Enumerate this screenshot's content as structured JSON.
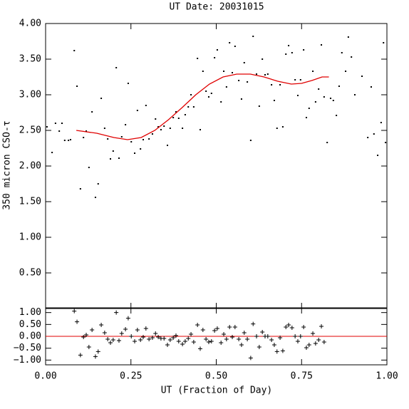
{
  "chart_data": [
    {
      "type": "scatter",
      "title": "UT Date: 20031015",
      "y_label": "350 micron CSO-τ",
      "xlim": [
        0,
        1
      ],
      "ylim": [
        0,
        4
      ],
      "yticks": [
        {
          "value": 0.5,
          "label": "0.50"
        },
        {
          "value": 1,
          "label": "1.00"
        },
        {
          "value": 1.5,
          "label": "1.50"
        },
        {
          "value": 2,
          "label": "2.00"
        },
        {
          "value": 2.5,
          "label": "2.50"
        },
        {
          "value": 3,
          "label": "3.00"
        },
        {
          "value": 3.5,
          "label": "3.50"
        },
        {
          "value": 4,
          "label": "4.00"
        }
      ],
      "series": [
        {
          "type": "scatter",
          "color": "#000000",
          "x": [
            0.004,
            0.019,
            0.029,
            0.04,
            0.048,
            0.056,
            0.067,
            0.073,
            0.084,
            0.092,
            0.102,
            0.111,
            0.119,
            0.127,
            0.136,
            0.146,
            0.154,
            0.163,
            0.173,
            0.182,
            0.19,
            0.198,
            0.207,
            0.215,
            0.223,
            0.234,
            0.242,
            0.251,
            0.261,
            0.269,
            0.278,
            0.286,
            0.294,
            0.303,
            0.313,
            0.322,
            0.33,
            0.338,
            0.347,
            0.357,
            0.365,
            0.374,
            0.382,
            0.39,
            0.401,
            0.409,
            0.418,
            0.426,
            0.434,
            0.445,
            0.453,
            0.461,
            0.47,
            0.478,
            0.486,
            0.495,
            0.503,
            0.514,
            0.522,
            0.53,
            0.539,
            0.547,
            0.555,
            0.566,
            0.574,
            0.582,
            0.591,
            0.601,
            0.608,
            0.618,
            0.626,
            0.635,
            0.643,
            0.651,
            0.662,
            0.67,
            0.678,
            0.687,
            0.695,
            0.704,
            0.712,
            0.722,
            0.731,
            0.739,
            0.747,
            0.756,
            0.764,
            0.772,
            0.783,
            0.791,
            0.8,
            0.808,
            0.816,
            0.825,
            0.835,
            0.843,
            0.852,
            0.86,
            0.868,
            0.879,
            0.887,
            0.896,
            0.906,
            0.927,
            0.944,
            0.954,
            0.962,
            0.973,
            0.983,
            0.99,
            0.996
          ],
          "values": [
            2.55,
            2.19,
            2.6,
            2.49,
            2.6,
            2.36,
            2.36,
            2.37,
            3.62,
            3.12,
            1.68,
            2.4,
            2.49,
            1.98,
            2.76,
            1.56,
            1.75,
            2.95,
            2.53,
            2.38,
            2.1,
            2.21,
            3.38,
            2.11,
            2.41,
            2.58,
            3.16,
            2.34,
            2.18,
            2.78,
            2.24,
            2.37,
            2.85,
            2.38,
            2.45,
            2.66,
            2.55,
            2.51,
            2.56,
            2.29,
            2.53,
            2.68,
            2.76,
            2.67,
            2.53,
            2.72,
            2.83,
            3.0,
            2.83,
            3.51,
            2.51,
            3.33,
            3.05,
            2.97,
            3.02,
            3.52,
            3.63,
            2.9,
            3.33,
            3.11,
            3.73,
            3.31,
            3.68,
            3.2,
            2.94,
            3.45,
            3.18,
            2.36,
            3.82,
            3.29,
            2.84,
            3.5,
            3.28,
            3.29,
            3.14,
            2.92,
            2.53,
            3.14,
            2.55,
            3.57,
            3.69,
            3.59,
            3.21,
            2.99,
            3.21,
            3.63,
            2.68,
            2.81,
            3.33,
            2.9,
            3.08,
            3.7,
            2.97,
            2.33,
            2.95,
            2.92,
            2.71,
            3.12,
            3.59,
            3.33,
            3.81,
            3.53,
            3.0,
            3.26,
            2.4,
            3.11,
            2.45,
            2.15,
            2.61,
            3.73,
            2.33
          ]
        },
        {
          "type": "line",
          "color": "#e00000",
          "x": [
            0.09,
            0.15,
            0.2,
            0.24,
            0.28,
            0.32,
            0.36,
            0.4,
            0.44,
            0.48,
            0.52,
            0.56,
            0.6,
            0.64,
            0.68,
            0.72,
            0.75,
            0.78,
            0.81,
            0.83
          ],
          "values": [
            2.5,
            2.46,
            2.4,
            2.37,
            2.4,
            2.5,
            2.65,
            2.82,
            3.0,
            3.15,
            3.25,
            3.29,
            3.29,
            3.25,
            3.19,
            3.15,
            3.16,
            3.2,
            3.25,
            3.25
          ]
        }
      ]
    },
    {
      "type": "scatter",
      "marker": "plus",
      "x_label": "UT (Fraction of Day)",
      "xlim": [
        0,
        1
      ],
      "ylim": [
        -1.2,
        1.2
      ],
      "xticks": [
        {
          "value": 0,
          "label": "0.00"
        },
        {
          "value": 0.25,
          "label": "0.25"
        },
        {
          "value": 0.5,
          "label": "0.50"
        },
        {
          "value": 0.75,
          "label": "0.75"
        },
        {
          "value": 1,
          "label": "1.00"
        }
      ],
      "yticks": [
        {
          "value": -1,
          "label": "−1.00"
        },
        {
          "value": -0.5,
          "label": "−0.50"
        },
        {
          "value": 0,
          "label": "0.00"
        },
        {
          "value": 0.5,
          "label": "0.50"
        },
        {
          "value": 1,
          "label": "1.00"
        }
      ],
      "reference_line": 0,
      "reference_color": "#e00000",
      "color": "#000000",
      "x": [
        0.084,
        0.092,
        0.102,
        0.111,
        0.119,
        0.127,
        0.136,
        0.146,
        0.154,
        0.163,
        0.173,
        0.182,
        0.19,
        0.198,
        0.207,
        0.215,
        0.223,
        0.234,
        0.242,
        0.251,
        0.261,
        0.269,
        0.278,
        0.286,
        0.294,
        0.303,
        0.313,
        0.322,
        0.33,
        0.338,
        0.347,
        0.357,
        0.365,
        0.374,
        0.382,
        0.39,
        0.401,
        0.409,
        0.418,
        0.426,
        0.434,
        0.445,
        0.453,
        0.461,
        0.47,
        0.478,
        0.486,
        0.495,
        0.503,
        0.514,
        0.522,
        0.53,
        0.539,
        0.547,
        0.555,
        0.566,
        0.574,
        0.582,
        0.591,
        0.601,
        0.608,
        0.618,
        0.626,
        0.635,
        0.643,
        0.651,
        0.662,
        0.67,
        0.678,
        0.687,
        0.695,
        0.704,
        0.712,
        0.722,
        0.731,
        0.739,
        0.747,
        0.756,
        0.764,
        0.772,
        0.783,
        0.791,
        0.8,
        0.808,
        0.816
      ],
      "values": [
        1.06,
        0.61,
        -0.79,
        -0.03,
        0.06,
        -0.45,
        0.27,
        -0.85,
        -0.64,
        0.48,
        0.15,
        -0.12,
        -0.27,
        -0.15,
        1.0,
        -0.18,
        0.12,
        0.3,
        0.76,
        0.0,
        -0.21,
        0.27,
        -0.15,
        -0.03,
        0.33,
        -0.12,
        -0.06,
        0.12,
        -0.03,
        -0.09,
        -0.09,
        -0.36,
        -0.15,
        -0.06,
        0.03,
        -0.21,
        -0.33,
        -0.21,
        -0.09,
        0.09,
        -0.24,
        0.48,
        -0.52,
        0.27,
        -0.12,
        -0.24,
        -0.21,
        0.24,
        0.33,
        -0.27,
        0.09,
        -0.12,
        0.39,
        -0.03,
        0.39,
        -0.12,
        -0.36,
        0.15,
        -0.12,
        -0.91,
        0.52,
        0.0,
        -0.45,
        0.18,
        0.0,
        0.0,
        -0.15,
        -0.36,
        -0.64,
        -0.06,
        -0.61,
        0.39,
        0.48,
        0.36,
        0.0,
        -0.21,
        0.0,
        0.39,
        -0.48,
        -0.36,
        0.12,
        -0.3,
        -0.15,
        0.42,
        -0.24
      ]
    }
  ]
}
